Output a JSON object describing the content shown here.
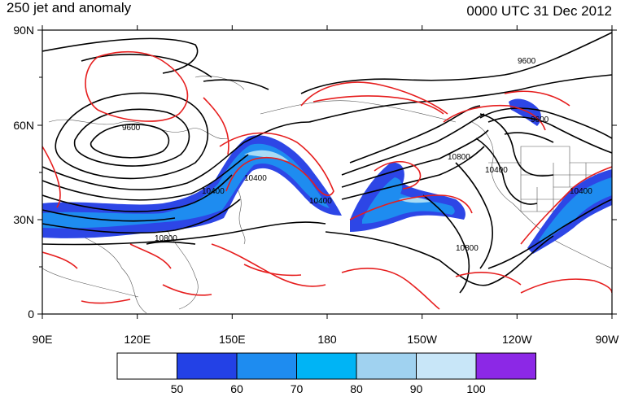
{
  "header": {
    "title_left": "250 jet and anomaly",
    "title_right": "0000 UTC 31 Dec 2012"
  },
  "axes": {
    "lat_labels": [
      "90N",
      "60N",
      "30N",
      "0"
    ],
    "lon_labels": [
      "90E",
      "120E",
      "150E",
      "180",
      "150W",
      "120W",
      "90W"
    ]
  },
  "contour_labels": [
    "9600",
    "9600",
    "10400",
    "10400",
    "10400",
    "10800",
    "10800",
    "10400",
    "10400",
    "10800",
    "9600"
  ],
  "colorbar": {
    "labels": [
      "50",
      "60",
      "70",
      "80",
      "90",
      "100"
    ],
    "colors": [
      "#ffffff",
      "#2341e6",
      "#1e8cf0",
      "#00b4f5",
      "#a0d2f0",
      "#c8e6f8",
      "#8c28e6"
    ]
  },
  "colors": {
    "jet_fill_base": "#2d46e6",
    "jet_fill_mid": "#1e8cf0",
    "jet_fill_core": "#a8dcf5",
    "anomaly_line": "#e61e1e",
    "geopotential_line": "#000000"
  }
}
